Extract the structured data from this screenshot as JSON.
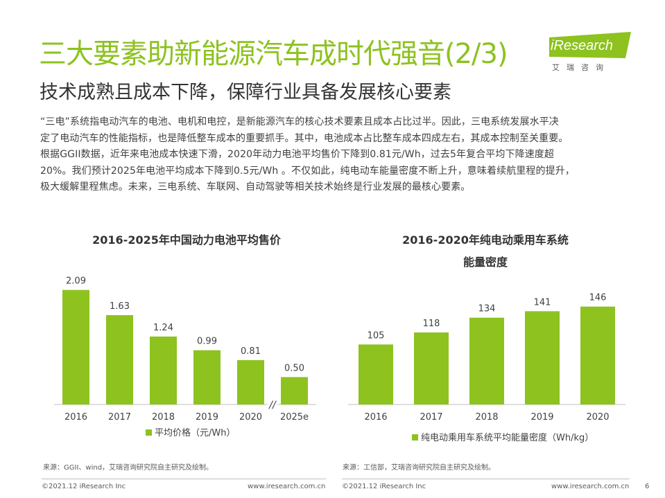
{
  "page": {
    "title": "三大要素助新能源汽车成时代强音(2/3)",
    "subtitle": "技术成熟且成本下降，保障行业具备发展核心要素",
    "body_lines": [
      "“三电”系统指电动汽车的电池、电机和电控，是新能源汽车的核心技术要素且成本占比过半。因此，三电系统发展水平决",
      "定了电动汽车的性能指标，也是降低整车成本的重要抓手。其中，电池成本占比整车成本四成左右，其成本控制至关重要。",
      "根据GGII数据，近年来电池成本快速下滑，2020年动力电池平均售价下降到0.81元/Wh，过去5年复合平均下降速度超",
      "20%。我们预计2025年电池平均成本下降到0.5元/Wh 。不仅如此，纯电动车能量密度不断上升，意味着续航里程的提升，",
      "极大缓解里程焦虑。未来，三电系统、车联网、自动驾驶等相关技术始终是行业发展的最核心要素。"
    ],
    "page_number": "6"
  },
  "logo": {
    "name": "iResearch",
    "sub": "艾瑞咨询"
  },
  "colors": {
    "accent": "#8dc21f",
    "bar": "#8dc21f",
    "axis": "#bfbfbf"
  },
  "chart_data": [
    {
      "type": "bar",
      "title": "2016-2025年中国动力电池平均售价",
      "categories": [
        "2016",
        "2017",
        "2018",
        "2019",
        "2020",
        "2025e"
      ],
      "series": [
        {
          "name": "平均价格（元/Wh）",
          "values": [
            2.09,
            1.63,
            1.24,
            0.99,
            0.81,
            0.5
          ]
        }
      ],
      "value_labels": [
        "2.09",
        "1.63",
        "1.24",
        "0.99",
        "0.81",
        "0.50"
      ],
      "axis_break_mark": "//",
      "ylim": [
        0,
        2.3
      ]
    },
    {
      "type": "bar",
      "title_lines": [
        "2016-2020年纯电动乘用车系统",
        "能量密度"
      ],
      "categories": [
        "2016",
        "2017",
        "2018",
        "2019",
        "2020"
      ],
      "series": [
        {
          "name": "纯电动乘用车系统平均能量密度（Wh/kg）",
          "values": [
            105,
            118,
            134,
            141,
            146
          ]
        }
      ],
      "value_labels": [
        "105",
        "118",
        "134",
        "141",
        "146"
      ],
      "ylim": [
        40,
        160
      ]
    }
  ],
  "sources": [
    "来源：GGII、wind，艾瑞咨询研究院自主研究及绘制。",
    "来源：工信部，艾瑞咨询研究院自主研究及绘制。"
  ],
  "footer": {
    "copyright_left": "©2021.12 iResearch Inc",
    "url_left": "www.iresearch.com.cn",
    "copyright_right": "©2021.12 iResearch Inc",
    "url_right": "www.iresearch.com.cn"
  }
}
